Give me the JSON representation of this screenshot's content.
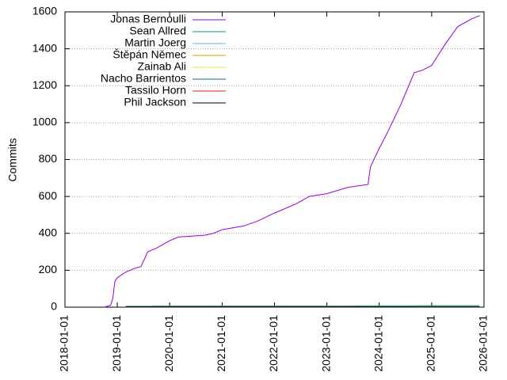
{
  "chart_data": {
    "type": "line",
    "y_label": "Commits",
    "x": [
      "2018-10-01",
      "2018-11-15",
      "2018-12-01",
      "2018-12-15",
      "2019-01-01",
      "2019-03-01",
      "2019-05-01",
      "2019-06-15",
      "2019-08-01",
      "2019-10-01",
      "2020-01-01",
      "2020-03-01",
      "2020-09-01",
      "2020-11-01",
      "2021-01-01",
      "2021-06-01",
      "2021-09-01",
      "2022-01-01",
      "2022-06-01",
      "2022-09-01",
      "2023-01-01",
      "2023-06-01",
      "2023-10-15",
      "2023-11-01",
      "2024-01-01",
      "2024-03-01",
      "2024-06-01",
      "2024-09-01",
      "2024-11-01",
      "2025-01-01",
      "2025-04-01",
      "2025-07-01",
      "2025-10-01",
      "2025-12-01"
    ],
    "series": [
      {
        "name": "Jonas Bernoulli",
        "color": "#9400d3",
        "values": [
          0,
          10,
          50,
          140,
          160,
          190,
          210,
          220,
          300,
          320,
          360,
          380,
          390,
          400,
          420,
          440,
          465,
          510,
          560,
          600,
          615,
          650,
          665,
          760,
          860,
          950,
          1100,
          1270,
          1285,
          1310,
          1420,
          1520,
          1560,
          1580
        ]
      },
      {
        "name": "Sean Allred",
        "color": "#009e73",
        "values": [
          null,
          null,
          null,
          null,
          null,
          5,
          5,
          5,
          5,
          6,
          6,
          6,
          6,
          6,
          6,
          6,
          6,
          6,
          6,
          6,
          6,
          6,
          7,
          7,
          7,
          7,
          7,
          7,
          8,
          8,
          8,
          8,
          8,
          8
        ]
      },
      {
        "name": "Martin Joerg",
        "color": "#56b4e9",
        "values": [
          null,
          null,
          null,
          null,
          null,
          2,
          2,
          2,
          2,
          2,
          2,
          2,
          2,
          2,
          2,
          2,
          2,
          2,
          2,
          2,
          2,
          2,
          2,
          2,
          2,
          2,
          2,
          2,
          2,
          2,
          2,
          2,
          2,
          2
        ]
      },
      {
        "name": "Štěpán Němec",
        "color": "#e69f00",
        "values": [
          null,
          null,
          null,
          null,
          null,
          2,
          2,
          2,
          2,
          2,
          2,
          2,
          2,
          2,
          2,
          2,
          2,
          2,
          2,
          2,
          2,
          2,
          2,
          2,
          2,
          2,
          2,
          2,
          2,
          2,
          2,
          2,
          2,
          2
        ]
      },
      {
        "name": "Zainab Ali",
        "color": "#f0e442",
        "values": [
          null,
          null,
          null,
          null,
          null,
          1,
          1,
          1,
          1,
          1,
          1,
          1,
          1,
          1,
          1,
          1,
          1,
          1,
          1,
          1,
          1,
          1,
          1,
          1,
          1,
          1,
          1,
          1,
          1,
          1,
          1,
          1,
          1,
          1
        ]
      },
      {
        "name": "Nacho Barrientos",
        "color": "#0072b2",
        "values": [
          null,
          null,
          null,
          null,
          null,
          3,
          3,
          3,
          3,
          3,
          3,
          3,
          3,
          3,
          3,
          3,
          3,
          3,
          3,
          3,
          3,
          3,
          3,
          3,
          3,
          3,
          3,
          3,
          3,
          3,
          3,
          3,
          3,
          3
        ]
      },
      {
        "name": "Tassilo Horn",
        "color": "#e51e10",
        "values": [
          null,
          null,
          null,
          null,
          null,
          1,
          1,
          1,
          1,
          1,
          1,
          1,
          1,
          1,
          1,
          1,
          1,
          1,
          1,
          1,
          1,
          1,
          1,
          1,
          1,
          1,
          1,
          1,
          1,
          1,
          1,
          1,
          1,
          1
        ]
      },
      {
        "name": "Phil Jackson",
        "color": "#000000",
        "values": [
          null,
          null,
          null,
          null,
          null,
          1,
          1,
          1,
          1,
          1,
          1,
          1,
          1,
          1,
          1,
          1,
          1,
          1,
          1,
          1,
          1,
          1,
          1,
          1,
          1,
          1,
          1,
          1,
          1,
          1,
          1,
          1,
          1,
          1
        ]
      }
    ],
    "xlim": [
      "2018-01-01",
      "2026-01-01"
    ],
    "xticks": [
      "2018-01-01",
      "2019-01-01",
      "2020-01-01",
      "2021-01-01",
      "2022-01-01",
      "2023-01-01",
      "2024-01-01",
      "2025-01-01",
      "2026-01-01"
    ],
    "ylim": [
      0,
      1600
    ],
    "yticks": [
      0,
      200,
      400,
      600,
      800,
      1000,
      1200,
      1400,
      1600
    ],
    "grid": true,
    "legend": "top-left"
  }
}
